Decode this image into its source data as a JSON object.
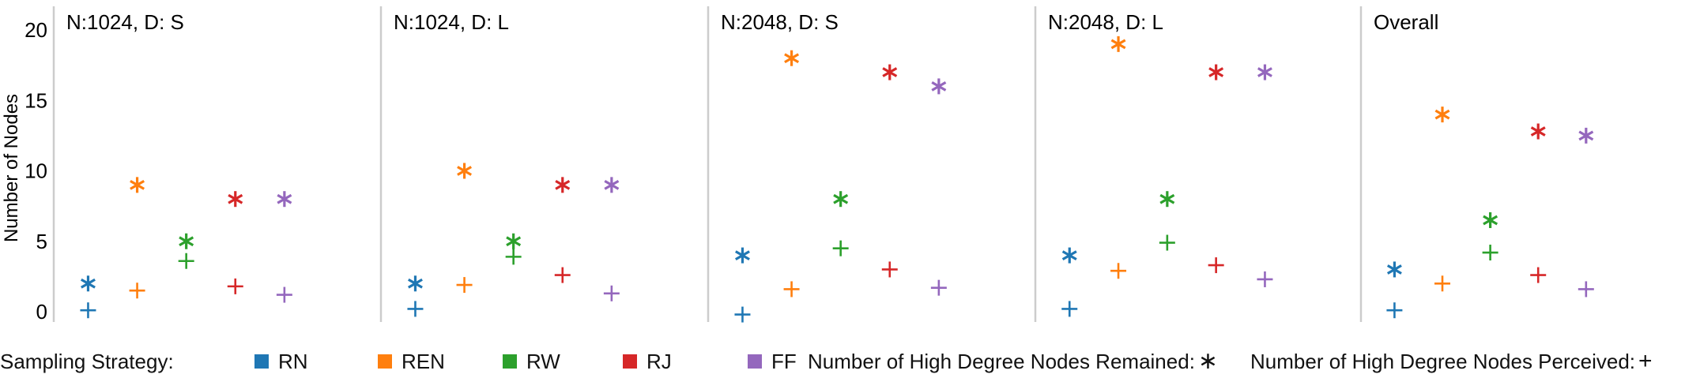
{
  "chart_data": {
    "type": "scatter",
    "ylabel": "Number of Nodes",
    "ylim": [
      0,
      21
    ],
    "yticks": [
      0,
      5,
      10,
      15,
      20
    ],
    "grid": false,
    "categories": [
      "RN",
      "REN",
      "RW",
      "RJ",
      "FF"
    ],
    "panels": [
      {
        "title": "N:1024, D: S",
        "remained": [
          2,
          9,
          5,
          8,
          8
        ],
        "perceived": [
          0.1,
          1.5,
          3.6,
          1.8,
          1.2
        ]
      },
      {
        "title": "N:1024, D: L",
        "remained": [
          2,
          10,
          5,
          9,
          9
        ],
        "perceived": [
          0.2,
          1.9,
          3.9,
          2.6,
          1.3
        ]
      },
      {
        "title": "N:2048, D: S",
        "remained": [
          4,
          18,
          8,
          17,
          16
        ],
        "perceived": [
          -0.2,
          1.6,
          4.5,
          3.0,
          1.7
        ]
      },
      {
        "title": "N:2048, D: L",
        "remained": [
          4,
          19,
          8,
          17,
          17
        ],
        "perceived": [
          0.2,
          2.9,
          4.9,
          3.3,
          2.3
        ]
      },
      {
        "title": "Overall",
        "remained": [
          3,
          14,
          6.5,
          12.8,
          12.5
        ],
        "perceived": [
          0.1,
          2.0,
          4.2,
          2.6,
          1.6
        ]
      }
    ],
    "legend": {
      "placement": "bottom",
      "title": "Sampling Strategy:",
      "remained_label": "Number of High Degree Nodes Remained:",
      "perceived_label": "Number of High Degree Nodes Perceived:",
      "remained_marker": "asterisk",
      "perceived_marker": "plus"
    }
  },
  "colors": {
    "RN": "#1f77b4",
    "REN": "#ff7f0e",
    "RW": "#2ca02c",
    "RJ": "#d62728",
    "FF": "#9467bd",
    "divider": "#cccccc"
  }
}
